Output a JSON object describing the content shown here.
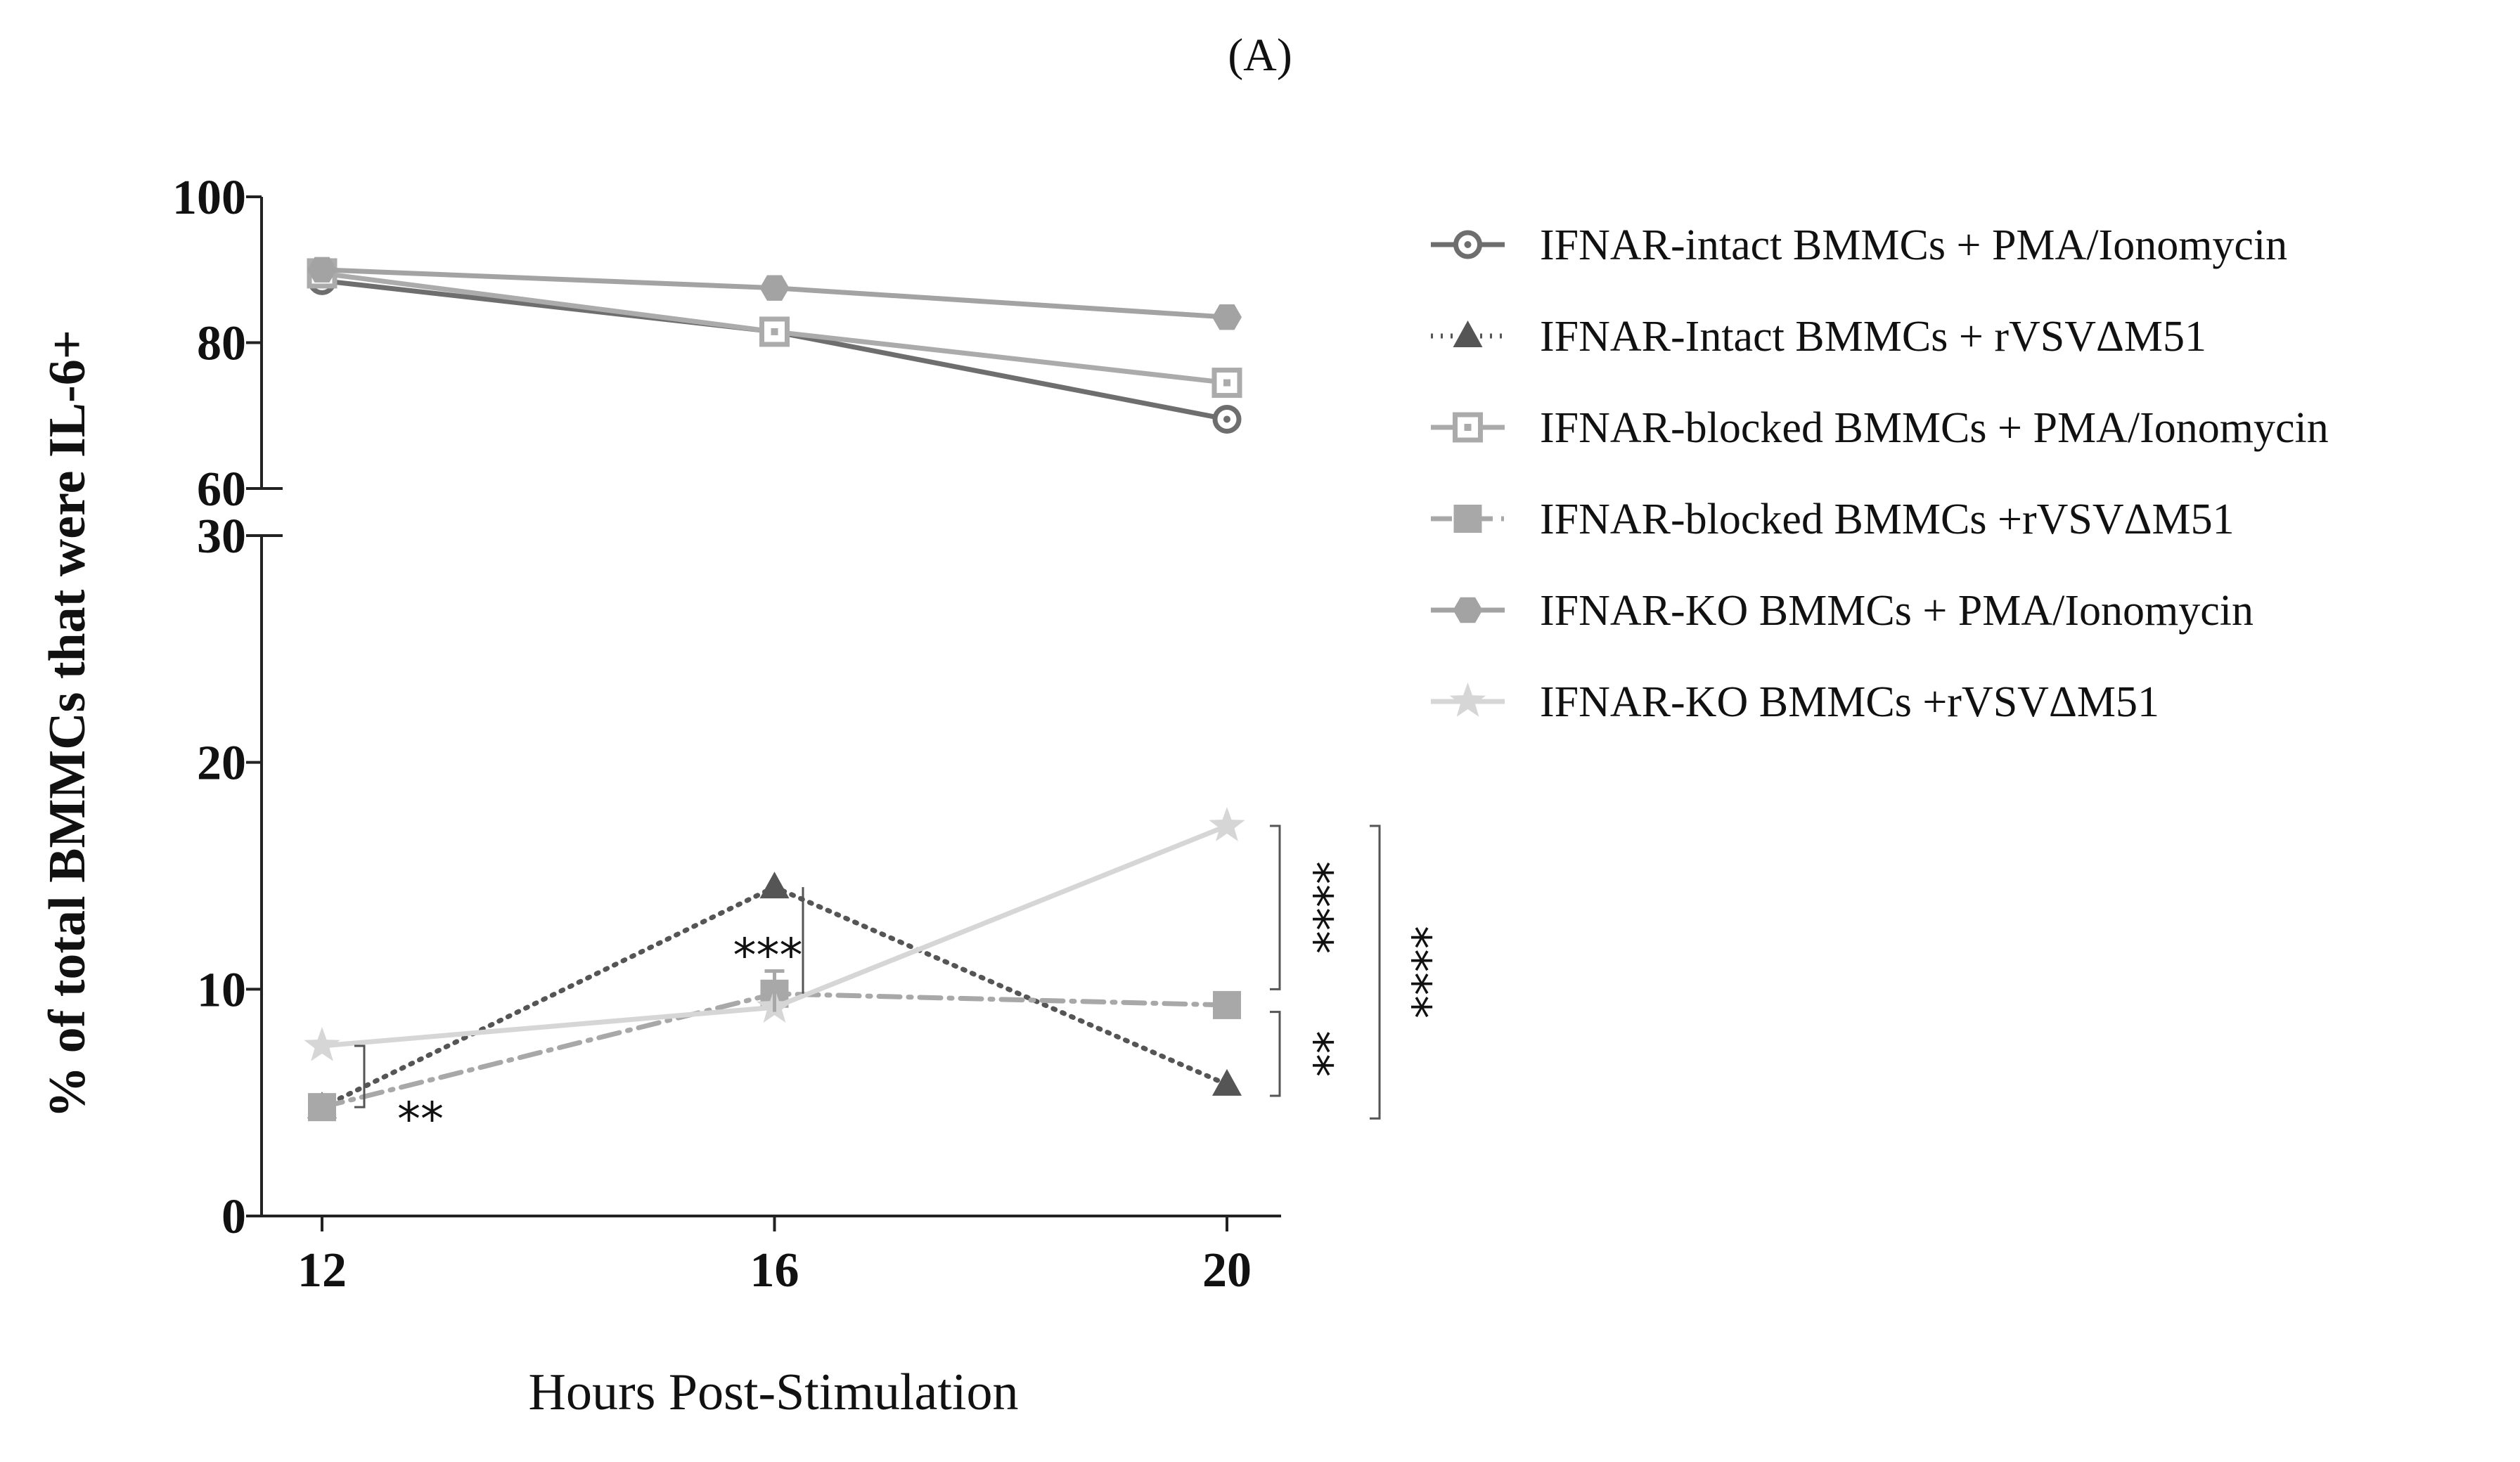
{
  "panel_label": "(A)",
  "chart_data": {
    "type": "line",
    "xlabel": "Hours Post-Stimulation",
    "ylabel": "% of total BMMCs that were IL-6+",
    "x": [
      12,
      16,
      20
    ],
    "x_tick_labels": [
      "12",
      "16",
      "20"
    ],
    "y_axis_break": true,
    "y_upper_range": [
      60,
      100
    ],
    "y_upper_ticks": [
      "60",
      "80",
      "100"
    ],
    "y_lower_range": [
      0,
      30
    ],
    "y_lower_ticks": [
      "0",
      "10",
      "20",
      "30"
    ],
    "legend_position": "right",
    "series": [
      {
        "name": "IFNAR-intact BMMCs + PMA/Ionomycin",
        "values": [
          88.5,
          81.5,
          69.5
        ],
        "marker": "circle-dot",
        "line": "solid",
        "color": "#6e6e6e"
      },
      {
        "name": "IFNAR-Intact BMMCs + rVSVΔM51",
        "values": [
          4.8,
          14.5,
          5.8
        ],
        "marker": "triangle",
        "line": "dotted",
        "color": "#555555"
      },
      {
        "name": "IFNAR-blocked  BMMCs + PMA/Ionomycin",
        "values": [
          89.5,
          81.5,
          74.5
        ],
        "marker": "square-open",
        "line": "solid",
        "color": "#ababab"
      },
      {
        "name": "IFNAR-blocked BMMCs +rVSVΔM51",
        "values": [
          4.8,
          9.8,
          9.3
        ],
        "marker": "square",
        "line": "dashdot",
        "color": "#a8a8a8"
      },
      {
        "name": "IFNAR-KO BMMCs + PMA/Ionomycin",
        "values": [
          90.0,
          87.5,
          83.5
        ],
        "marker": "hexagon",
        "line": "solid",
        "color": "#a3a3a3"
      },
      {
        "name": "IFNAR-KO BMMCs +rVSVΔM51",
        "values": [
          7.5,
          9.2,
          17.2
        ],
        "marker": "star",
        "line": "solid",
        "color": "#d6d6d6"
      }
    ],
    "annotations": [
      {
        "text": "**",
        "x": 12,
        "between": [
          4.8,
          7.5
        ]
      },
      {
        "text": "***",
        "x": 16,
        "between": [
          9.8,
          14.5
        ]
      },
      {
        "text": "****",
        "x": 20,
        "between": [
          10.0,
          17.2
        ]
      },
      {
        "text": "**",
        "x": 20,
        "between": [
          5.3,
          9.0
        ]
      },
      {
        "text": "****",
        "x": 20,
        "between": [
          4.3,
          17.2
        ]
      }
    ]
  }
}
